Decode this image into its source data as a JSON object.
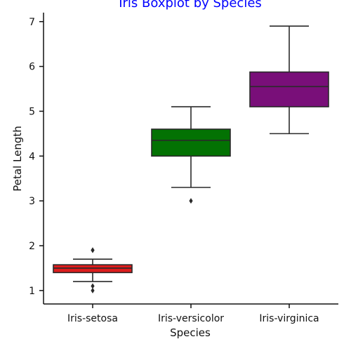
{
  "chart_data": {
    "type": "boxplot",
    "title": "Iris Boxplot by Species",
    "xlabel": "Species",
    "ylabel": "Petal Length",
    "categories": [
      "Iris-setosa",
      "Iris-versicolor",
      "Iris-virginica"
    ],
    "ylim": [
      0.7,
      7.2
    ],
    "yticks": [
      "1",
      "2",
      "3",
      "4",
      "5",
      "6",
      "7"
    ],
    "grid": false,
    "boxes": [
      {
        "category": "Iris-setosa",
        "whisker_low": 1.2,
        "q1": 1.4,
        "median": 1.5,
        "q3": 1.575,
        "whisker_high": 1.7,
        "outliers": [
          1.0,
          1.1,
          1.9,
          1.9
        ],
        "color": "#dd1c1c"
      },
      {
        "category": "Iris-versicolor",
        "whisker_low": 3.3,
        "q1": 4.0,
        "median": 4.35,
        "q3": 4.6,
        "whisker_high": 5.1,
        "outliers": [
          3.0
        ],
        "color": "#037203"
      },
      {
        "category": "Iris-virginica",
        "whisker_low": 4.5,
        "q1": 5.1,
        "median": 5.55,
        "q3": 5.875,
        "whisker_high": 6.9,
        "outliers": [],
        "color": "#790f79"
      }
    ],
    "colors": {
      "title": "#0000ff",
      "line": "#2a2a2a",
      "axis": "#111111"
    }
  }
}
